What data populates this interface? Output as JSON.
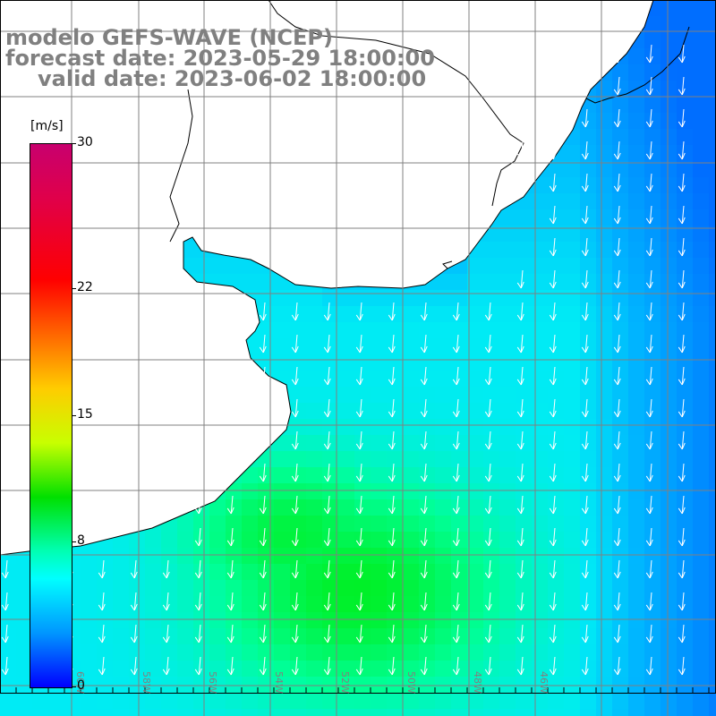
{
  "title": {
    "line1": "modelo GEFS-WAVE (NCEP)",
    "line2": "forecast date: 2023-05-29 18:00:00",
    "line3": "valid date: 2023-06-02 18:00:00"
  },
  "colorbar": {
    "unit": "[m/s]",
    "ticks": [
      {
        "label": "30",
        "value": 30
      },
      {
        "label": "22",
        "value": 22
      },
      {
        "label": "15",
        "value": 15
      },
      {
        "label": "8",
        "value": 8
      },
      {
        "label": "0",
        "value": 0
      }
    ],
    "min": 0,
    "max": 30
  },
  "longitude_labels": [
    "60W",
    "58W",
    "56W",
    "54W",
    "52W",
    "50W",
    "48W",
    "46W"
  ],
  "colors": {
    "land": "#ffffff",
    "coast": "#000000",
    "grid": "#808080",
    "arrow": "#ffffff",
    "title": "#808080"
  }
}
